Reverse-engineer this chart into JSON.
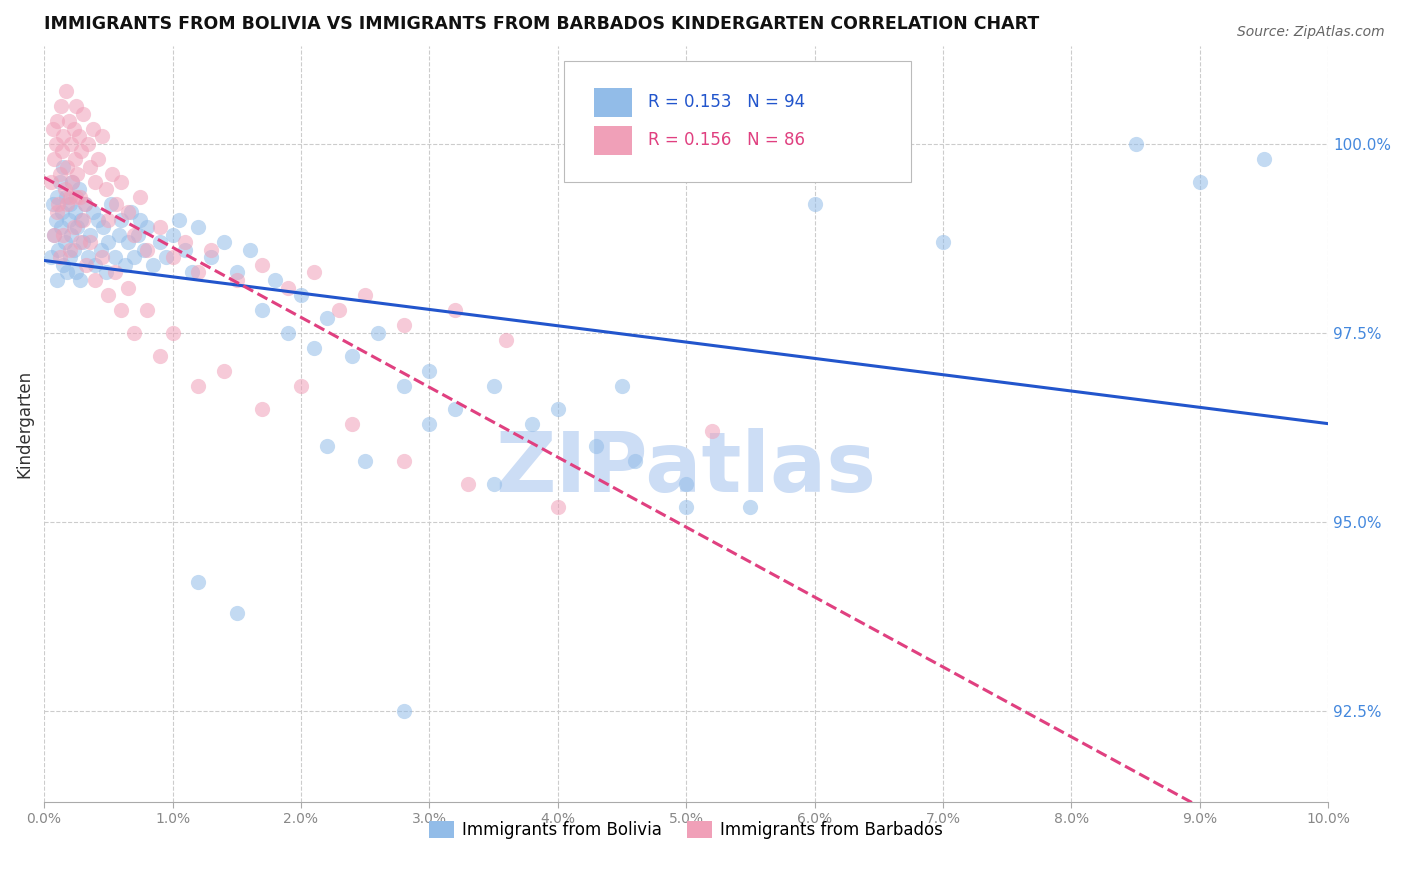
{
  "title": "IMMIGRANTS FROM BOLIVIA VS IMMIGRANTS FROM BARBADOS KINDERGARTEN CORRELATION CHART",
  "source": "Source: ZipAtlas.com",
  "ylabel": "Kindergarten",
  "yticks": [
    92.5,
    95.0,
    97.5,
    100.0
  ],
  "ytick_labels": [
    "92.5%",
    "95.0%",
    "97.5%",
    "100.0%"
  ],
  "xlim": [
    0.0,
    10.0
  ],
  "ylim": [
    91.3,
    101.3
  ],
  "R_bolivia": 0.153,
  "N_bolivia": 94,
  "R_barbados": 0.156,
  "N_barbados": 86,
  "color_bolivia": "#92bce8",
  "color_barbados": "#f0a0b8",
  "color_trendline_bolivia": "#2255cc",
  "color_trendline_barbados": "#e04080",
  "watermark_color": "#ccddf5",
  "legend_label_bolivia": "Immigrants from Bolivia",
  "legend_label_barbados": "Immigrants from Barbados",
  "bolivia_x": [
    0.05,
    0.07,
    0.08,
    0.09,
    0.1,
    0.1,
    0.11,
    0.12,
    0.13,
    0.14,
    0.15,
    0.15,
    0.16,
    0.17,
    0.18,
    0.19,
    0.2,
    0.2,
    0.21,
    0.22,
    0.23,
    0.24,
    0.25,
    0.26,
    0.27,
    0.28,
    0.29,
    0.3,
    0.32,
    0.34,
    0.36,
    0.38,
    0.4,
    0.42,
    0.44,
    0.46,
    0.48,
    0.5,
    0.52,
    0.55,
    0.58,
    0.6,
    0.63,
    0.65,
    0.68,
    0.7,
    0.73,
    0.75,
    0.78,
    0.8,
    0.85,
    0.9,
    0.95,
    1.0,
    1.05,
    1.1,
    1.15,
    1.2,
    1.3,
    1.4,
    1.5,
    1.6,
    1.7,
    1.8,
    1.9,
    2.0,
    2.1,
    2.2,
    2.4,
    2.6,
    2.8,
    3.0,
    3.2,
    3.5,
    3.8,
    4.0,
    4.3,
    4.6,
    5.0,
    5.5,
    2.2,
    2.5,
    3.0,
    3.5,
    4.5,
    5.0,
    6.0,
    7.0,
    8.5,
    9.0,
    9.5,
    1.2,
    1.5,
    2.8
  ],
  "bolivia_y": [
    98.5,
    99.2,
    98.8,
    99.0,
    99.3,
    98.2,
    98.6,
    99.5,
    98.9,
    99.1,
    98.4,
    99.7,
    98.7,
    99.3,
    98.3,
    99.0,
    98.5,
    99.2,
    98.8,
    99.5,
    98.6,
    99.1,
    98.3,
    98.9,
    99.4,
    98.2,
    99.0,
    98.7,
    99.2,
    98.5,
    98.8,
    99.1,
    98.4,
    99.0,
    98.6,
    98.9,
    98.3,
    98.7,
    99.2,
    98.5,
    98.8,
    99.0,
    98.4,
    98.7,
    99.1,
    98.5,
    98.8,
    99.0,
    98.6,
    98.9,
    98.4,
    98.7,
    98.5,
    98.8,
    99.0,
    98.6,
    98.3,
    98.9,
    98.5,
    98.7,
    98.3,
    98.6,
    97.8,
    98.2,
    97.5,
    98.0,
    97.3,
    97.7,
    97.2,
    97.5,
    96.8,
    97.0,
    96.5,
    96.8,
    96.3,
    96.5,
    96.0,
    95.8,
    95.5,
    95.2,
    96.0,
    95.8,
    96.3,
    95.5,
    96.8,
    95.2,
    99.2,
    98.7,
    100.0,
    99.5,
    99.8,
    94.2,
    93.8,
    92.5
  ],
  "barbados_x": [
    0.05,
    0.07,
    0.08,
    0.09,
    0.1,
    0.11,
    0.12,
    0.13,
    0.14,
    0.15,
    0.16,
    0.17,
    0.18,
    0.19,
    0.2,
    0.21,
    0.22,
    0.23,
    0.24,
    0.25,
    0.26,
    0.27,
    0.28,
    0.29,
    0.3,
    0.32,
    0.34,
    0.36,
    0.38,
    0.4,
    0.42,
    0.45,
    0.48,
    0.5,
    0.53,
    0.56,
    0.6,
    0.65,
    0.7,
    0.75,
    0.8,
    0.9,
    1.0,
    1.1,
    1.2,
    1.3,
    1.5,
    1.7,
    1.9,
    2.1,
    2.3,
    2.5,
    2.8,
    3.2,
    3.6,
    0.08,
    0.1,
    0.12,
    0.15,
    0.18,
    0.2,
    0.23,
    0.25,
    0.28,
    0.3,
    0.33,
    0.36,
    0.4,
    0.45,
    0.5,
    0.55,
    0.6,
    0.65,
    0.7,
    0.8,
    0.9,
    1.0,
    1.2,
    1.4,
    1.7,
    2.0,
    2.4,
    2.8,
    3.3,
    4.0,
    5.2
  ],
  "barbados_y": [
    99.5,
    100.2,
    99.8,
    100.0,
    100.3,
    99.2,
    99.6,
    100.5,
    99.9,
    100.1,
    99.4,
    100.7,
    99.7,
    100.3,
    99.3,
    100.0,
    99.5,
    100.2,
    99.8,
    100.5,
    99.6,
    100.1,
    99.3,
    99.9,
    100.4,
    99.2,
    100.0,
    99.7,
    100.2,
    99.5,
    99.8,
    100.1,
    99.4,
    99.0,
    99.6,
    99.2,
    99.5,
    99.1,
    98.8,
    99.3,
    98.6,
    98.9,
    98.5,
    98.7,
    98.3,
    98.6,
    98.2,
    98.4,
    98.1,
    98.3,
    97.8,
    98.0,
    97.6,
    97.8,
    97.4,
    98.8,
    99.1,
    98.5,
    98.8,
    99.2,
    98.6,
    98.9,
    99.3,
    98.7,
    99.0,
    98.4,
    98.7,
    98.2,
    98.5,
    98.0,
    98.3,
    97.8,
    98.1,
    97.5,
    97.8,
    97.2,
    97.5,
    96.8,
    97.0,
    96.5,
    96.8,
    96.3,
    95.8,
    95.5,
    95.2,
    96.2
  ]
}
